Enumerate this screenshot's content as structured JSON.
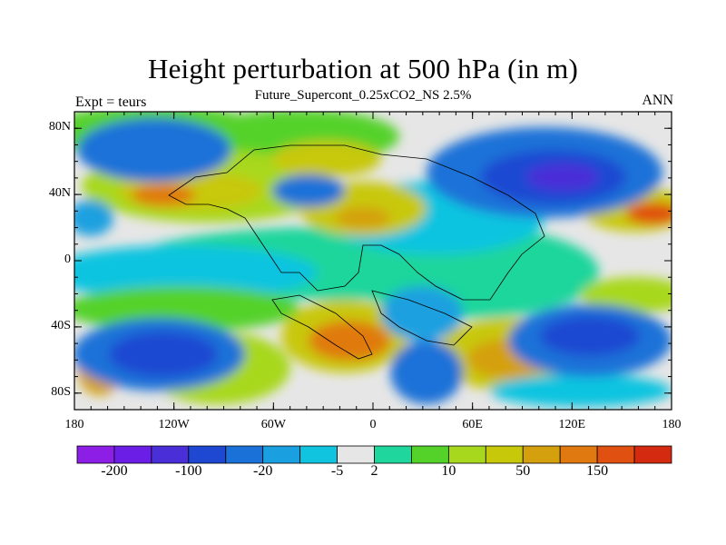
{
  "title": "Height perturbation at 500 hPa (in m)",
  "subtitle": "Future_Supercont_0.25xCO2_NS 2.5%",
  "left_label": "Expt = teurs",
  "right_label": "ANN",
  "map": {
    "lat_range": [
      -90,
      90
    ],
    "lon_range": [
      -180,
      180
    ],
    "lat_ticks": [
      {
        "value": 80,
        "label": "80N"
      },
      {
        "value": 40,
        "label": "40N"
      },
      {
        "value": 0,
        "label": "0"
      },
      {
        "value": -40,
        "label": "40S"
      },
      {
        "value": -80,
        "label": "80S"
      }
    ],
    "lon_ticks": [
      {
        "value": -180,
        "label": "180"
      },
      {
        "value": -120,
        "label": "120W"
      },
      {
        "value": -60,
        "label": "60W"
      },
      {
        "value": 0,
        "label": "0"
      },
      {
        "value": 60,
        "label": "60E"
      },
      {
        "value": 120,
        "label": "120E"
      },
      {
        "value": 180,
        "label": "180"
      }
    ]
  },
  "colorbar": {
    "colors": [
      "#8c1ee6",
      "#6a1ee6",
      "#4a2ed8",
      "#1e48d2",
      "#1a72d8",
      "#1aa0e0",
      "#10c4e0",
      "#e6e6e6",
      "#1fd69c",
      "#54d22a",
      "#a8d81e",
      "#c8c80a",
      "#d4a00e",
      "#e07a10",
      "#e05010",
      "#d42a10"
    ],
    "labels": [
      {
        "index": 1,
        "text": "-200"
      },
      {
        "index": 3,
        "text": "-100"
      },
      {
        "index": 5,
        "text": "-20"
      },
      {
        "index": 7,
        "text": "-5"
      },
      {
        "index": 8,
        "text": "2"
      },
      {
        "index": 10,
        "text": "10"
      },
      {
        "index": 12,
        "text": "50"
      },
      {
        "index": 14,
        "text": "150"
      }
    ]
  }
}
